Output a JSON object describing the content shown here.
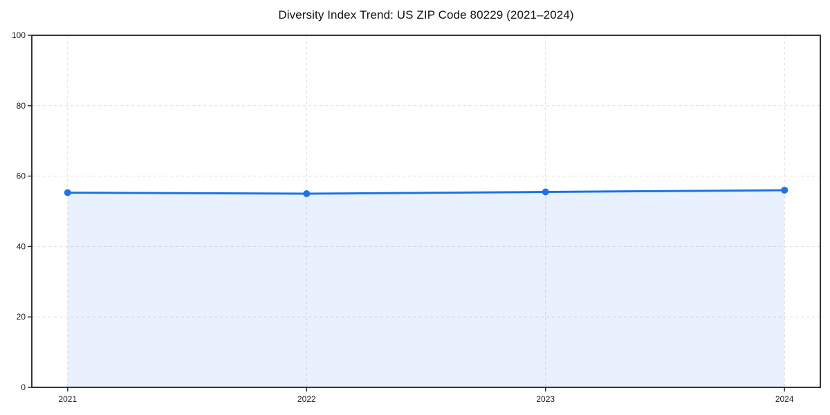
{
  "chart_data": {
    "type": "line",
    "subtype": "line-with-area-fill-and-markers",
    "title": "Diversity Index Trend: US ZIP Code 80229 (2021–2024)",
    "x": [
      2021,
      2022,
      2023,
      2024
    ],
    "x_tick_labels": [
      "2021",
      "2022",
      "2023",
      "2024"
    ],
    "series": [
      {
        "name": "Diversity Index",
        "values": [
          55.3,
          55.0,
          55.5,
          56.0
        ]
      }
    ],
    "xlabel": "",
    "ylabel": "",
    "xlim": [
      2020.85,
      2024.15
    ],
    "ylim": [
      0,
      100
    ],
    "y_ticks": [
      0,
      20,
      40,
      60,
      80,
      100
    ],
    "y_tick_labels": [
      "0",
      "20",
      "40",
      "60",
      "80",
      "100"
    ],
    "grid": "dashed, horizontal and vertical",
    "legend": "none",
    "fill_baseline": 0,
    "colors": {
      "line": "#1a73e8",
      "marker": "#1a73e8",
      "fill": "rgba(26,115,232,0.10)",
      "grid": "#dcdcdc",
      "spine": "#1f1f1f",
      "tick_label": "#1f1f1f",
      "title": "#111111",
      "background": "#ffffff"
    }
  }
}
